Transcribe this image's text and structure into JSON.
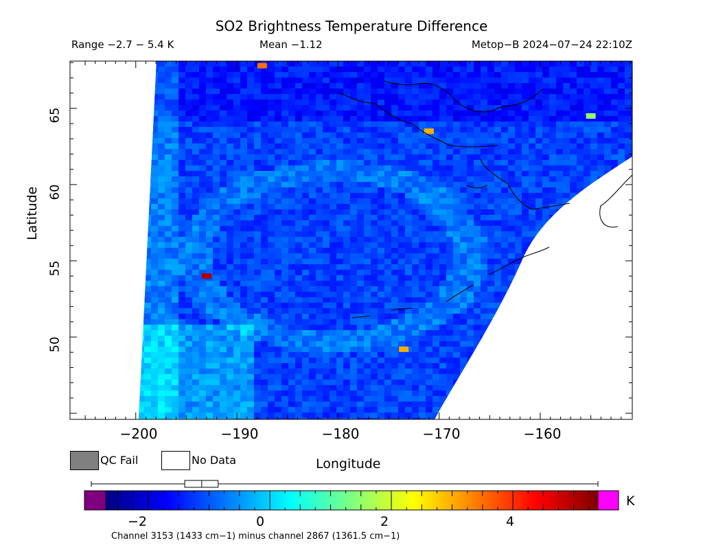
{
  "header": {
    "title": "SO2 Brightness Temperature Difference",
    "range_text": "Range −2.7 − 5.4 K",
    "mean_text": "Mean −1.12",
    "satellite_text": "Metop−B 2024−07−24 22:10Z"
  },
  "legend": {
    "qc_fail_label": "QC Fail",
    "qc_fail_color": "#808080",
    "no_data_label": "No Data",
    "no_data_color": "#ffffff"
  },
  "colorbar": {
    "unit": "K",
    "ticks": [
      "−2",
      "0",
      "2",
      "4"
    ],
    "tick_values": [
      -2,
      0,
      2,
      4
    ],
    "min": -2.7,
    "max": 5.4,
    "under_color": "#800080",
    "over_color": "#ff00ff",
    "colors": [
      "#00007f",
      "#0000ff",
      "#007fff",
      "#00ffff",
      "#7fff7f",
      "#ffff00",
      "#ff7f00",
      "#ff0000",
      "#7f0000"
    ],
    "boxplot": {
      "min": -2.7,
      "q1": -1.4,
      "median": -1.12,
      "q3": -0.85,
      "max": 5.4
    }
  },
  "footnote": "Channel 3153 (1433 cm−1) minus channel 2867 (1361.5 cm−1)",
  "chart_data": {
    "type": "heatmap",
    "title": "SO2 Brightness Temperature Difference",
    "xlabel": "Longitude",
    "ylabel": "Latitude",
    "x_ticks": [
      "−200",
      "−190",
      "−180",
      "−170",
      "−160"
    ],
    "x_tick_values": [
      -200,
      -190,
      -180,
      -170,
      -160
    ],
    "y_ticks": [
      "50",
      "55",
      "60",
      "65"
    ],
    "y_tick_values": [
      50,
      55,
      60,
      65
    ],
    "xlim": [
      -206.5,
      -150.9
    ],
    "ylim": [
      44.6,
      68.1
    ],
    "value_range": [
      -2.7,
      5.4
    ],
    "mean": -1.12,
    "unit": "K",
    "hotspots": [
      {
        "lon": -193,
        "lat": 54,
        "value": 5.0
      },
      {
        "lon": -187.5,
        "lat": 67.8,
        "value": 3.5
      },
      {
        "lon": -155,
        "lat": 64.5,
        "value": 1.5
      },
      {
        "lon": -171,
        "lat": 63.5,
        "value": 3.0
      },
      {
        "lon": -173.5,
        "lat": 49.2,
        "value": 3.0
      }
    ]
  }
}
